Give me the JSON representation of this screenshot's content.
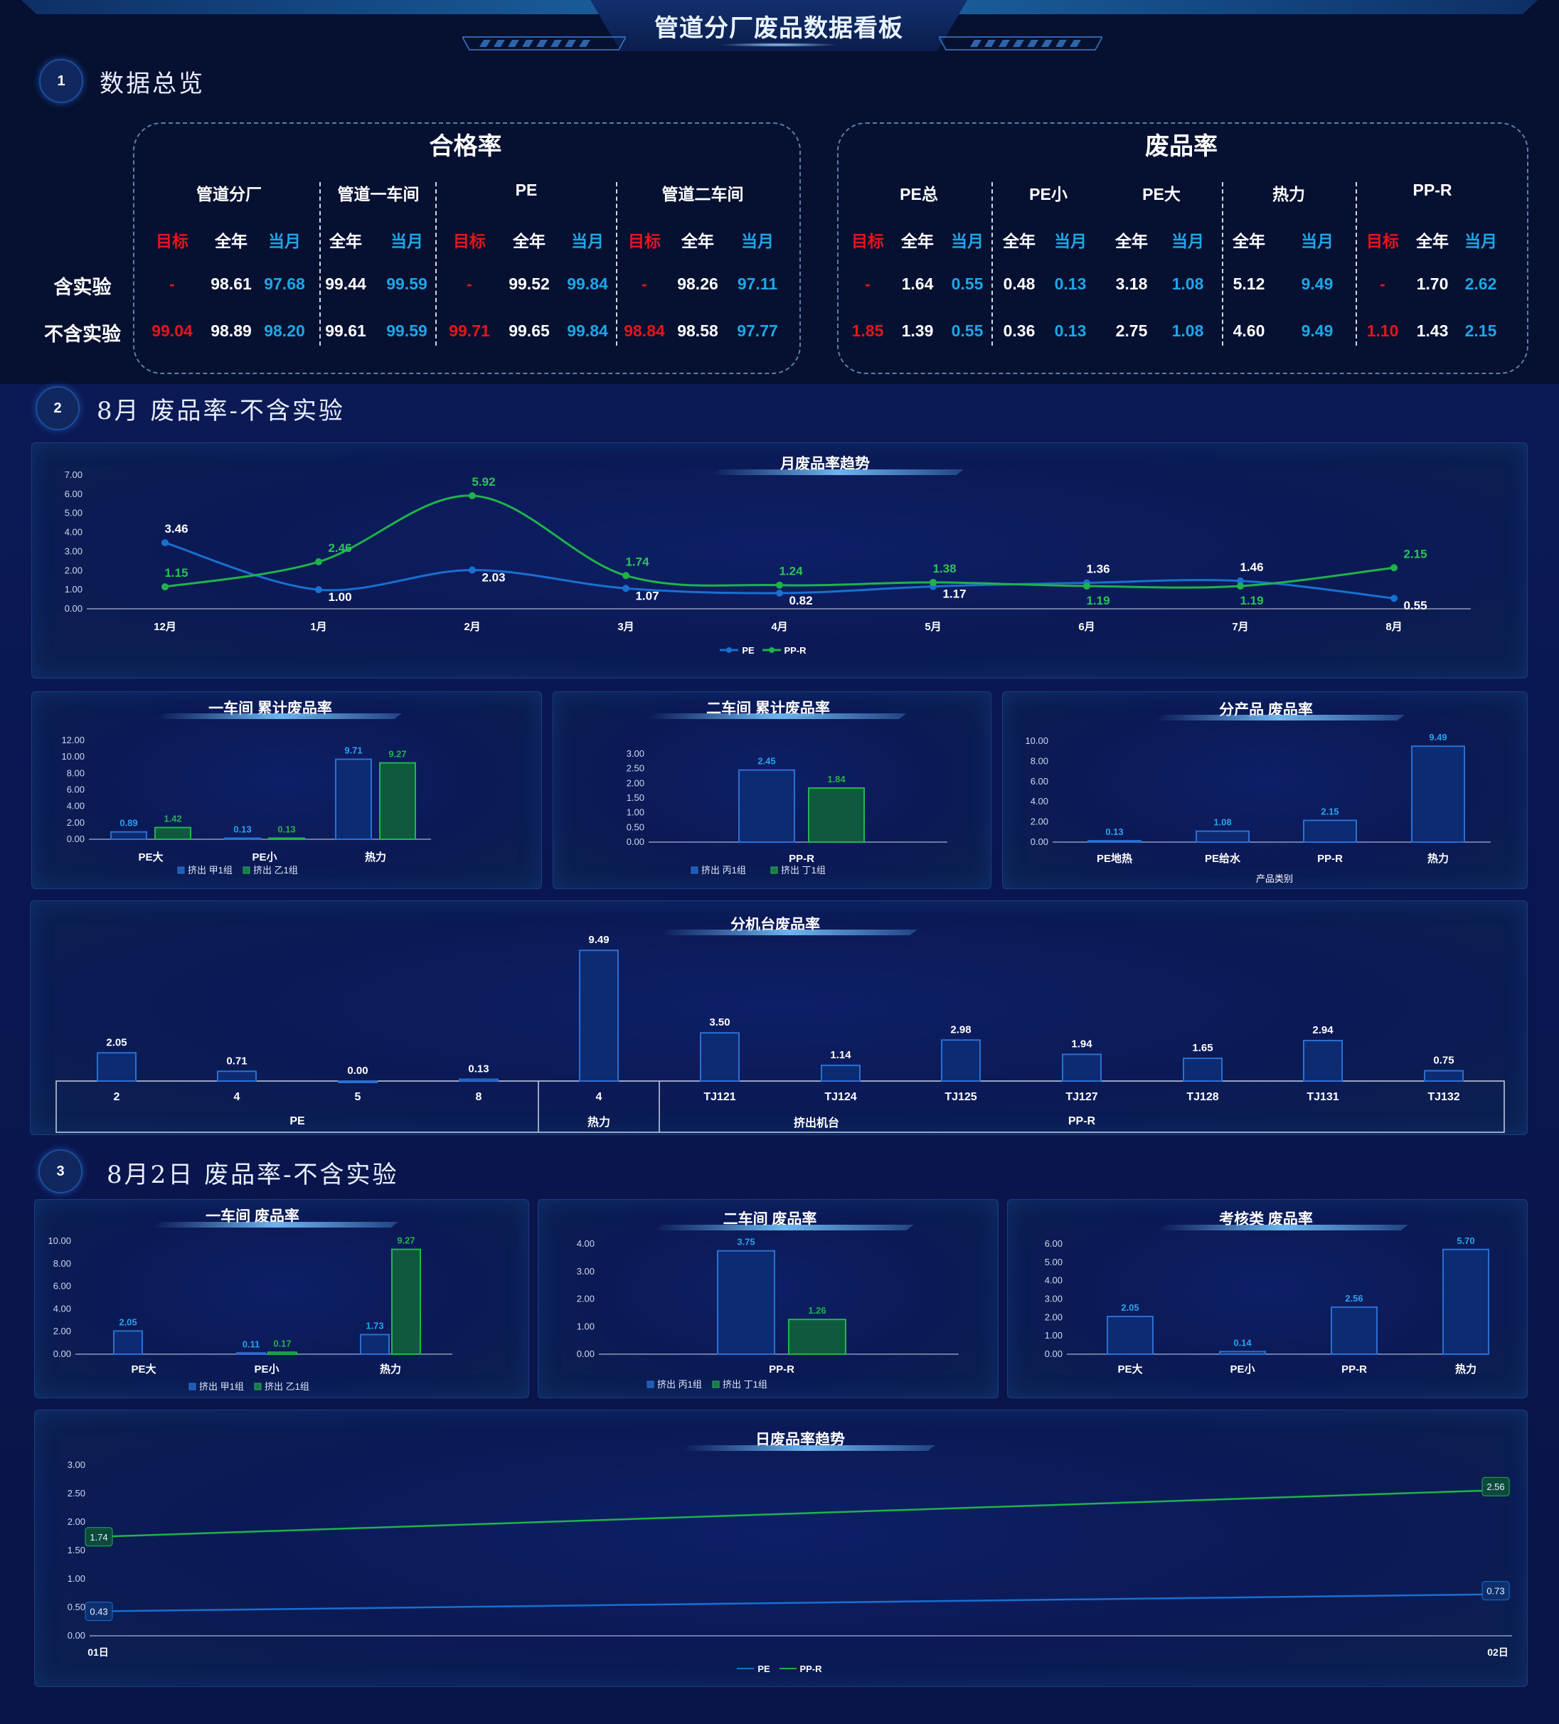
{
  "header": {
    "title": "管道分厂废品数据看板"
  },
  "sections": {
    "s1": {
      "num": "1",
      "title": "数据总览"
    },
    "s2": {
      "num": "2",
      "title": "8月 废品率-不含实验"
    },
    "s3": {
      "num": "3",
      "title": "8月2日 废品率-不含实验"
    }
  },
  "kpi": {
    "pass_rate": {
      "title": "合格率",
      "groups": [
        "管道分厂",
        "管道一车间",
        "PE",
        "管道二车间"
      ],
      "cols": [
        "目标",
        "全年",
        "当月",
        "全年",
        "当月",
        "目标",
        "全年",
        "当月",
        "目标",
        "全年",
        "当月"
      ],
      "rows": [
        {
          "label": "含实验",
          "values": [
            "-",
            "98.61",
            "97.68",
            "99.44",
            "99.59",
            "-",
            "99.52",
            "99.84",
            "-",
            "98.26",
            "97.11"
          ]
        },
        {
          "label": "不含实验",
          "values": [
            "99.04",
            "98.89",
            "98.20",
            "99.61",
            "99.59",
            "99.71",
            "99.65",
            "99.84",
            "98.84",
            "98.58",
            "97.77"
          ]
        }
      ]
    },
    "scrap_rate": {
      "title": "废品率",
      "groups": [
        "PE总",
        "PE小",
        "PE大",
        "热力",
        "PP-R"
      ],
      "cols": [
        "目标",
        "全年",
        "当月",
        "全年",
        "当月",
        "全年",
        "当月",
        "全年",
        "当月",
        "目标",
        "全年",
        "当月"
      ],
      "rows": [
        {
          "label": "含实验",
          "values": [
            "-",
            "1.64",
            "0.55",
            "0.48",
            "0.13",
            "3.18",
            "1.08",
            "5.12",
            "9.49",
            "-",
            "1.70",
            "2.62"
          ]
        },
        {
          "label": "不含实验",
          "values": [
            "1.85",
            "1.39",
            "0.55",
            "0.36",
            "0.13",
            "2.75",
            "1.08",
            "4.60",
            "9.49",
            "1.10",
            "1.43",
            "2.15"
          ]
        }
      ]
    },
    "colors": {
      "target": "#e4161d",
      "year": "#ffffff",
      "month": "#1ea6e8"
    }
  },
  "chart_data": [
    {
      "id": "monthly_trend",
      "type": "line",
      "title": "月废品率趋势",
      "categories": [
        "12月",
        "1月",
        "2月",
        "3月",
        "4月",
        "5月",
        "6月",
        "7月",
        "8月"
      ],
      "series": [
        {
          "name": "PE",
          "color": "#1a6fd0",
          "values": [
            3.46,
            1.0,
            2.03,
            1.07,
            0.82,
            1.17,
            1.36,
            1.46,
            0.55
          ]
        },
        {
          "name": "PP-R",
          "color": "#1fb34a",
          "values": [
            1.15,
            2.46,
            5.92,
            1.74,
            1.24,
            1.38,
            1.19,
            1.19,
            2.15
          ]
        }
      ],
      "yticks": [
        "0.00",
        "1.00",
        "2.00",
        "3.00",
        "4.00",
        "5.00",
        "6.00",
        "7.00"
      ],
      "ylim": [
        0,
        7
      ]
    },
    {
      "id": "ws1_cum",
      "type": "bar",
      "title": "一车间 累计废品率",
      "categories": [
        "PE大",
        "PE小",
        "热力"
      ],
      "series": [
        {
          "name": "挤出 甲1组",
          "color": "#1a4a9a",
          "label_color": "#2aa2ee",
          "values": [
            0.89,
            0.13,
            9.71
          ]
        },
        {
          "name": "挤出 乙1组",
          "color": "#1a7a4a",
          "label_color": "#22b34a",
          "values": [
            1.42,
            0.13,
            9.27
          ]
        }
      ],
      "yticks": [
        "0.00",
        "2.00",
        "4.00",
        "6.00",
        "8.00",
        "10.00",
        "12.00"
      ],
      "ylim": [
        0,
        12
      ]
    },
    {
      "id": "ws2_cum",
      "type": "bar",
      "title": "二车间 累计废品率",
      "categories": [
        "PP-R"
      ],
      "series": [
        {
          "name": "挤出 丙1组",
          "color": "#1a4a9a",
          "label_color": "#2aa2ee",
          "values": [
            2.45
          ]
        },
        {
          "name": "挤出 丁1组",
          "color": "#1a7a4a",
          "label_color": "#22b34a",
          "values": [
            1.84
          ]
        }
      ],
      "yticks": [
        "0.00",
        "0.50",
        "1.00",
        "1.50",
        "2.00",
        "2.50",
        "3.00"
      ],
      "ylim": [
        0,
        3
      ]
    },
    {
      "id": "by_product",
      "type": "bar",
      "title": "分产品 废品率",
      "xlabel": "产品类别",
      "categories": [
        "PE地热",
        "PE给水",
        "PP-R",
        "热力"
      ],
      "series": [
        {
          "name": "",
          "color": "#1a4a9a",
          "label_color": "#2aa2ee",
          "values": [
            0.13,
            1.08,
            2.15,
            9.49
          ]
        }
      ],
      "yticks": [
        "0.00",
        "2.00",
        "4.00",
        "6.00",
        "8.00",
        "10.00"
      ],
      "ylim": [
        0,
        10
      ]
    },
    {
      "id": "by_machine",
      "type": "bar",
      "title": "分机台废品率",
      "categories": [
        "2",
        "4",
        "5",
        "8",
        "4",
        "TJ121",
        "TJ124",
        "TJ125",
        "TJ127",
        "TJ128",
        "TJ131",
        "TJ132"
      ],
      "values": [
        2.05,
        0.71,
        0.0,
        0.13,
        9.49,
        3.5,
        1.14,
        2.98,
        1.94,
        1.65,
        2.94,
        0.75
      ],
      "groups": [
        {
          "label": "PE",
          "span": 4
        },
        {
          "label": "热力",
          "span": 1
        },
        {
          "label": "PP-R",
          "span": 7
        }
      ],
      "parent_label": "挤出机台",
      "ylim": [
        0,
        10
      ]
    },
    {
      "id": "ws1_day",
      "type": "bar",
      "title": "一车间 废品率",
      "categories": [
        "PE大",
        "PE小",
        "热力"
      ],
      "series": [
        {
          "name": "挤出 甲1组",
          "color": "#1a4a9a",
          "label_color": "#2aa2ee",
          "values": [
            2.05,
            0.11,
            1.73
          ]
        },
        {
          "name": "挤出 乙1组",
          "color": "#1a7a4a",
          "label_color": "#22b34a",
          "values": [
            null,
            0.17,
            9.27
          ]
        }
      ],
      "yticks": [
        "0.00",
        "2.00",
        "4.00",
        "6.00",
        "8.00",
        "10.00"
      ],
      "ylim": [
        0,
        10
      ]
    },
    {
      "id": "ws2_day",
      "type": "bar",
      "title": "二车间 废品率",
      "categories": [
        "PP-R"
      ],
      "series": [
        {
          "name": "挤出 丙1组",
          "color": "#1a4a9a",
          "label_color": "#2aa2ee",
          "values": [
            3.75
          ]
        },
        {
          "name": "挤出 丁1组",
          "color": "#1a7a4a",
          "label_color": "#22b34a",
          "values": [
            1.26
          ]
        }
      ],
      "yticks": [
        "0.00",
        "1.00",
        "2.00",
        "3.00",
        "4.00"
      ],
      "ylim": [
        0,
        4
      ]
    },
    {
      "id": "assess_day",
      "type": "bar",
      "title": "考核类 废品率",
      "categories": [
        "PE大",
        "PE小",
        "PP-R",
        "热力"
      ],
      "series": [
        {
          "name": "",
          "color": "#1a4a9a",
          "label_color": "#2aa2ee",
          "values": [
            2.05,
            0.14,
            2.56,
            5.7
          ]
        }
      ],
      "yticks": [
        "0.00",
        "1.00",
        "2.00",
        "3.00",
        "4.00",
        "5.00",
        "6.00"
      ],
      "ylim": [
        0,
        6
      ]
    },
    {
      "id": "daily_trend",
      "type": "line",
      "title": "日废品率趋势",
      "categories": [
        "01日",
        "02日"
      ],
      "series": [
        {
          "name": "PE",
          "color": "#1a6fd0",
          "values": [
            0.43,
            0.73
          ]
        },
        {
          "name": "PP-R",
          "color": "#1fb34a",
          "values": [
            1.74,
            2.56
          ]
        }
      ],
      "yticks": [
        "0.00",
        "0.50",
        "1.00",
        "1.50",
        "2.00",
        "2.50",
        "3.00"
      ],
      "ylim": [
        0,
        3
      ]
    }
  ]
}
